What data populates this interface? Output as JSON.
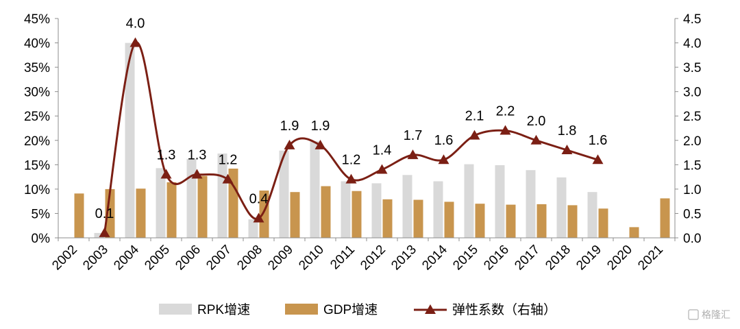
{
  "chart_data": {
    "type": "bar",
    "categories": [
      "2002",
      "2003",
      "2004",
      "2005",
      "2006",
      "2007",
      "2008",
      "2009",
      "2010",
      "2011",
      "2012",
      "2013",
      "2014",
      "2015",
      "2016",
      "2017",
      "2018",
      "2019",
      "2020",
      "2021"
    ],
    "series": [
      {
        "name": "RPK增速",
        "type": "bar",
        "axis": "left",
        "color": "#d9d9d9",
        "values": [
          null,
          1.0,
          40.0,
          14.3,
          16.2,
          17.3,
          3.8,
          17.9,
          19.8,
          11.6,
          11.2,
          12.9,
          11.6,
          15.1,
          14.9,
          13.9,
          12.4,
          9.4,
          null,
          null
        ]
      },
      {
        "name": "GDP增速",
        "type": "bar",
        "axis": "left",
        "color": "#c8954e",
        "values": [
          9.1,
          10.0,
          10.1,
          11.4,
          12.7,
          14.2,
          9.7,
          9.4,
          10.6,
          9.6,
          7.9,
          7.8,
          7.4,
          7.0,
          6.8,
          6.9,
          6.7,
          6.0,
          2.2,
          8.1
        ]
      },
      {
        "name": "弹性系数（右轴）",
        "type": "line",
        "axis": "right",
        "color": "#7b1f14",
        "values": [
          null,
          0.1,
          4.0,
          1.3,
          1.3,
          1.2,
          0.4,
          1.9,
          1.9,
          1.2,
          1.4,
          1.7,
          1.6,
          2.1,
          2.2,
          2.0,
          1.8,
          1.6,
          null,
          null
        ],
        "labels": [
          "",
          "0.1",
          "4.0",
          "1.3",
          "1.3",
          "1.2",
          "0.4",
          "1.9",
          "1.9",
          "1.2",
          "1.4",
          "1.7",
          "1.6",
          "2.1",
          "2.2",
          "2.0",
          "1.8",
          "1.6",
          "",
          ""
        ]
      }
    ],
    "y_left": {
      "ylim": [
        0,
        45
      ],
      "ticks": [
        "0%",
        "5%",
        "10%",
        "15%",
        "20%",
        "25%",
        "30%",
        "35%",
        "40%",
        "45%"
      ]
    },
    "y_right": {
      "ylim": [
        0,
        4.5
      ],
      "ticks": [
        "0.0",
        "0.5",
        "1.0",
        "1.5",
        "2.0",
        "2.5",
        "3.0",
        "3.5",
        "4.0",
        "4.5"
      ]
    },
    "grid": false,
    "legend": "bottom"
  },
  "watermark": "格隆汇"
}
